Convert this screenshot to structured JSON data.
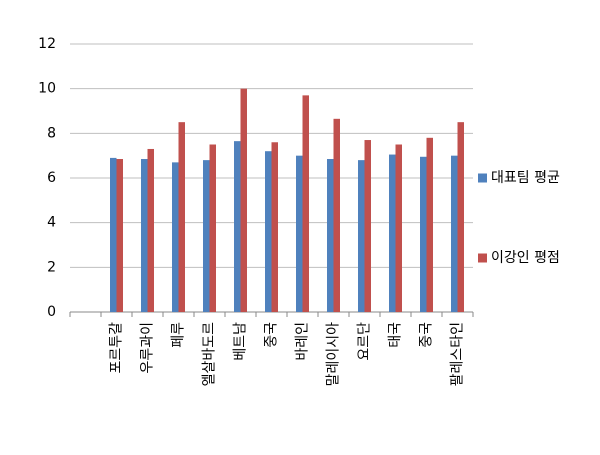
{
  "chart_data": {
    "type": "bar",
    "categories": [
      null,
      "포르투갈",
      "우루과이",
      "페루",
      "엘살바도르",
      "베트남",
      "중국",
      "바레인",
      "말레이시아",
      "요르단",
      "태국",
      "중국",
      "팔레스타인"
    ],
    "series": [
      {
        "name": "대표팀 평균",
        "color": "#4f81bd",
        "values": [
          null,
          6.9,
          6.85,
          6.7,
          6.8,
          7.65,
          7.2,
          7.0,
          6.85,
          6.8,
          7.05,
          6.95,
          7.0
        ]
      },
      {
        "name": "이강인 평점",
        "color": "#c0504d",
        "values": [
          null,
          6.85,
          7.3,
          8.5,
          7.5,
          10.0,
          7.6,
          9.7,
          8.65,
          7.7,
          7.5,
          7.8,
          8.5
        ]
      }
    ],
    "ylim": [
      0,
      12
    ],
    "yticks": [
      0,
      2,
      4,
      6,
      8,
      10,
      12
    ],
    "grid": true,
    "legend": "right"
  }
}
